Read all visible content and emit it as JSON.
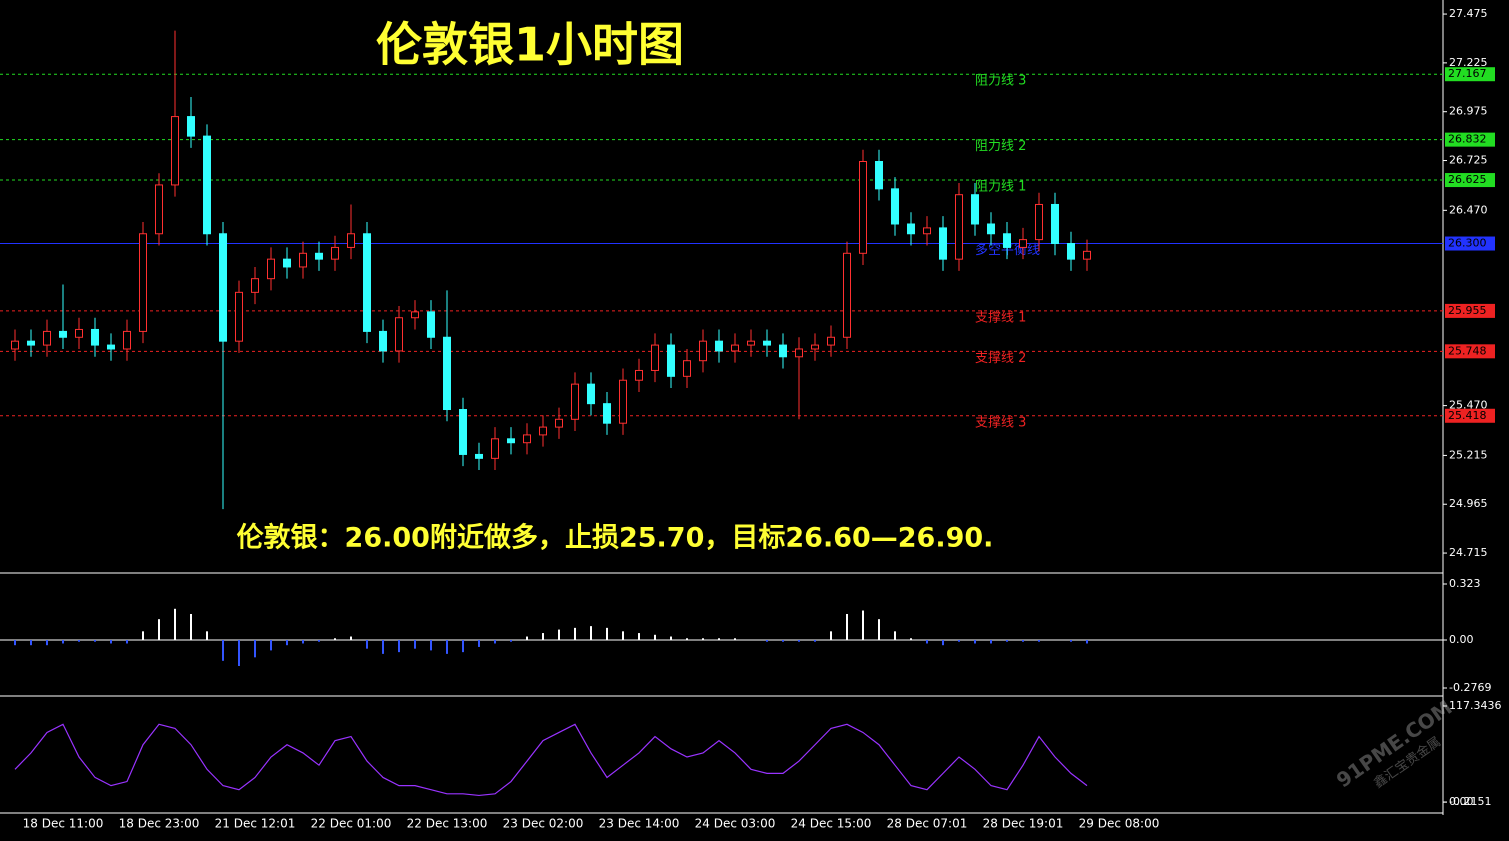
{
  "chart_data": [
    {
      "type": "candlestick",
      "title": "伦敦银1小时图",
      "annotation": "伦敦银：26.00附近做多，止损25.70，目标26.60—26.90.",
      "categories": [
        null,
        null,
        null,
        "18 Dec 11:00",
        null,
        null,
        null,
        null,
        null,
        "18 Dec 23:00",
        null,
        null,
        null,
        null,
        null,
        "21 Dec 12:01",
        null,
        null,
        null,
        null,
        null,
        "22 Dec 01:00",
        null,
        null,
        null,
        null,
        null,
        "22 Dec 13:00",
        null,
        null,
        null,
        null,
        null,
        "23 Dec 02:00",
        null,
        null,
        null,
        null,
        null,
        "23 Dec 14:00",
        null,
        null,
        null,
        null,
        null,
        "24 Dec 03:00",
        null,
        null,
        null,
        null,
        null,
        "24 Dec 15:00",
        null,
        null,
        null,
        null,
        null,
        "28 Dec 07:01",
        null,
        null,
        null,
        null,
        null,
        "28 Dec 19:01",
        null,
        null,
        null,
        null,
        null,
        "29 Dec 08:00"
      ],
      "open": [
        25.76,
        25.8,
        25.78,
        25.85,
        25.82,
        25.86,
        25.78,
        25.76,
        25.85,
        26.35,
        26.6,
        26.95,
        26.85,
        26.35,
        25.8,
        26.05,
        26.12,
        26.22,
        26.18,
        26.25,
        26.22,
        26.28,
        26.35,
        25.85,
        25.75,
        25.92,
        25.95,
        25.82,
        25.45,
        25.22,
        25.2,
        25.3,
        25.28,
        25.32,
        25.36,
        25.4,
        25.58,
        25.48,
        25.38,
        25.6,
        25.65,
        25.78,
        25.62,
        25.7,
        25.8,
        25.75,
        25.78,
        25.8,
        25.78,
        25.72,
        25.76,
        25.78,
        25.82,
        26.25,
        26.72,
        26.58,
        26.4,
        26.35,
        26.38,
        26.22,
        26.55,
        26.4,
        26.35,
        26.28,
        26.32,
        26.5,
        26.3,
        26.22,
        null,
        null
      ],
      "high": [
        25.86,
        25.86,
        25.91,
        26.09,
        25.92,
        25.92,
        25.84,
        25.91,
        26.41,
        26.66,
        27.39,
        27.05,
        26.91,
        26.41,
        26.11,
        26.18,
        26.28,
        26.28,
        26.31,
        26.31,
        26.34,
        26.5,
        26.41,
        25.91,
        25.98,
        26.01,
        26.01,
        26.06,
        25.51,
        25.28,
        25.36,
        25.36,
        25.38,
        25.42,
        25.46,
        25.64,
        25.64,
        25.54,
        25.66,
        25.71,
        25.84,
        25.84,
        25.76,
        25.86,
        25.86,
        25.84,
        25.86,
        25.86,
        25.84,
        25.82,
        25.84,
        25.88,
        26.31,
        26.78,
        26.78,
        26.64,
        26.46,
        26.44,
        26.44,
        26.61,
        26.61,
        26.46,
        26.41,
        26.38,
        26.56,
        26.56,
        26.36,
        26.32,
        null,
        null
      ],
      "low": [
        25.7,
        25.72,
        25.72,
        25.76,
        25.76,
        25.72,
        25.7,
        25.7,
        25.79,
        26.29,
        26.54,
        26.79,
        26.29,
        24.94,
        25.74,
        25.99,
        26.06,
        26.12,
        26.12,
        26.16,
        26.16,
        26.22,
        25.79,
        25.69,
        25.69,
        25.86,
        25.76,
        25.39,
        25.16,
        25.14,
        25.14,
        25.22,
        25.22,
        25.26,
        25.3,
        25.34,
        25.42,
        25.32,
        25.32,
        25.54,
        25.59,
        25.56,
        25.56,
        25.64,
        25.69,
        25.69,
        25.72,
        25.72,
        25.66,
        25.4,
        25.7,
        25.72,
        25.76,
        26.19,
        26.52,
        26.34,
        26.29,
        26.29,
        26.16,
        26.16,
        26.34,
        26.29,
        26.22,
        26.22,
        26.26,
        26.24,
        26.16,
        26.16,
        null,
        null
      ],
      "close": [
        25.8,
        25.78,
        25.85,
        25.82,
        25.86,
        25.78,
        25.76,
        25.85,
        26.35,
        26.6,
        26.95,
        26.85,
        26.35,
        25.8,
        26.05,
        26.12,
        26.22,
        26.18,
        26.25,
        26.22,
        26.28,
        26.35,
        25.85,
        25.75,
        25.92,
        25.95,
        25.82,
        25.45,
        25.22,
        25.2,
        25.3,
        25.28,
        25.32,
        25.36,
        25.4,
        25.58,
        25.48,
        25.38,
        25.6,
        25.65,
        25.78,
        25.62,
        25.7,
        25.8,
        25.75,
        25.78,
        25.8,
        25.78,
        25.72,
        25.76,
        25.78,
        25.82,
        26.25,
        26.72,
        26.58,
        26.4,
        26.35,
        26.38,
        26.22,
        26.55,
        26.4,
        26.35,
        26.28,
        26.32,
        26.5,
        26.3,
        26.22,
        26.26,
        null,
        null
      ],
      "up_color": "#ff3030",
      "down_color": "#33ffff",
      "ylim": [
        24.618,
        27.547
      ],
      "yticks": [
        27.475,
        27.225,
        26.975,
        26.725,
        {
          "value": 26.47,
          "label": "26.470"
        },
        {
          "value": 25.47,
          "label": "25.470"
        },
        25.215,
        24.965,
        24.715
      ],
      "levels": [
        {
          "value": 27.167,
          "name": "阻力线 3",
          "color": "#22dd22"
        },
        {
          "value": 26.832,
          "name": "阻力线 2",
          "color": "#22dd22"
        },
        {
          "value": 26.625,
          "name": "阻力线 1",
          "color": "#22dd22"
        },
        {
          "value": 26.3,
          "label": "26.300",
          "name": "多空平衡线",
          "color": "#2233ff"
        },
        {
          "value": 25.955,
          "name": "支撑线 1",
          "color": "#ee2222"
        },
        {
          "value": 25.748,
          "name": "支撑线 2",
          "color": "#ee2222"
        },
        {
          "value": 25.418,
          "name": "支撑线 3",
          "color": "#ee2222"
        }
      ],
      "watermark": [
        "91PME.COM",
        "鑫汇宝贵金属"
      ]
    },
    {
      "type": "histogram",
      "pos_color": "#ffffff",
      "neg_color": "#3355ff",
      "values": [
        -0.03,
        -0.03,
        -0.03,
        -0.02,
        -0.01,
        -0.01,
        -0.02,
        -0.02,
        0.05,
        0.12,
        0.18,
        0.15,
        0.05,
        -0.12,
        -0.15,
        -0.1,
        -0.06,
        -0.03,
        -0.02,
        -0.01,
        0.01,
        0.02,
        -0.05,
        -0.08,
        -0.07,
        -0.05,
        -0.06,
        -0.08,
        -0.07,
        -0.04,
        -0.02,
        -0.01,
        0.02,
        0.04,
        0.06,
        0.07,
        0.08,
        0.07,
        0.05,
        0.04,
        0.03,
        0.02,
        0.01,
        0.01,
        0.01,
        0.01,
        0,
        -0.01,
        -0.01,
        -0.01,
        -0.01,
        0.05,
        0.15,
        0.17,
        0.12,
        0.05,
        0.01,
        -0.02,
        -0.03,
        -0.01,
        -0.02,
        -0.02,
        -0.01,
        -0.01,
        -0.01,
        0,
        -0.01,
        -0.02,
        null,
        null
      ],
      "ylim": [
        -0.3115,
        0.3634
      ],
      "yticks": [
        0.323,
        {
          "value": 0,
          "label": "0.00"
        },
        -0.2769
      ]
    },
    {
      "type": "line",
      "color": "#9933ff",
      "values": [
        40,
        60,
        85,
        95,
        55,
        30,
        20,
        25,
        70,
        95,
        90,
        70,
        40,
        20,
        15,
        30,
        55,
        70,
        60,
        45,
        75,
        80,
        50,
        30,
        20,
        20,
        15,
        10,
        10,
        8,
        10,
        25,
        50,
        75,
        85,
        95,
        60,
        30,
        45,
        60,
        80,
        65,
        55,
        60,
        75,
        60,
        40,
        35,
        35,
        50,
        70,
        90,
        95,
        85,
        70,
        45,
        20,
        15,
        35,
        55,
        40,
        20,
        15,
        45,
        80,
        55,
        35,
        20,
        null,
        null
      ],
      "ylim": [
        -12.22,
        127.12
      ],
      "yticks": [
        117.3436,
        {
          "value": 0,
          "label": "0.00"
        },
        -0.2151
      ]
    }
  ]
}
